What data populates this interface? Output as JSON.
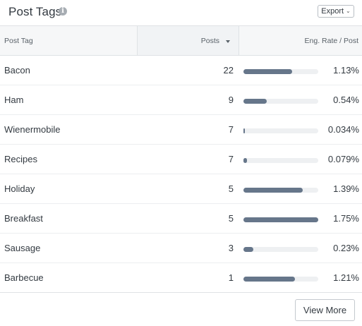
{
  "header": {
    "title": "Post Tags",
    "info_icon": "info-icon",
    "export_label": "Export"
  },
  "table": {
    "columns": {
      "tag": "Post Tag",
      "posts": "Posts",
      "eng": "Eng. Rate / Post"
    },
    "sort": {
      "column": "posts",
      "direction": "descending"
    },
    "rows": [
      {
        "tag": "Bacon",
        "posts": "22",
        "rate": "1.13%",
        "bar_fraction": 0.646
      },
      {
        "tag": "Ham",
        "posts": "9",
        "rate": "0.54%",
        "bar_fraction": 0.309
      },
      {
        "tag": "Wienermobile",
        "posts": "7",
        "rate": "0.034%",
        "bar_fraction": 0.019
      },
      {
        "tag": "Recipes",
        "posts": "7",
        "rate": "0.079%",
        "bar_fraction": 0.045
      },
      {
        "tag": "Holiday",
        "posts": "5",
        "rate": "1.39%",
        "bar_fraction": 0.794
      },
      {
        "tag": "Breakfast",
        "posts": "5",
        "rate": "1.75%",
        "bar_fraction": 1.0
      },
      {
        "tag": "Sausage",
        "posts": "3",
        "rate": "0.23%",
        "bar_fraction": 0.131
      },
      {
        "tag": "Barbecue",
        "posts": "1",
        "rate": "1.21%",
        "bar_fraction": 0.691
      }
    ]
  },
  "footer": {
    "view_more_label": "View More"
  },
  "colors": {
    "bar_fill": "#66768a",
    "bar_track": "#eef0f2",
    "header_bg": "#f6f7f8"
  }
}
